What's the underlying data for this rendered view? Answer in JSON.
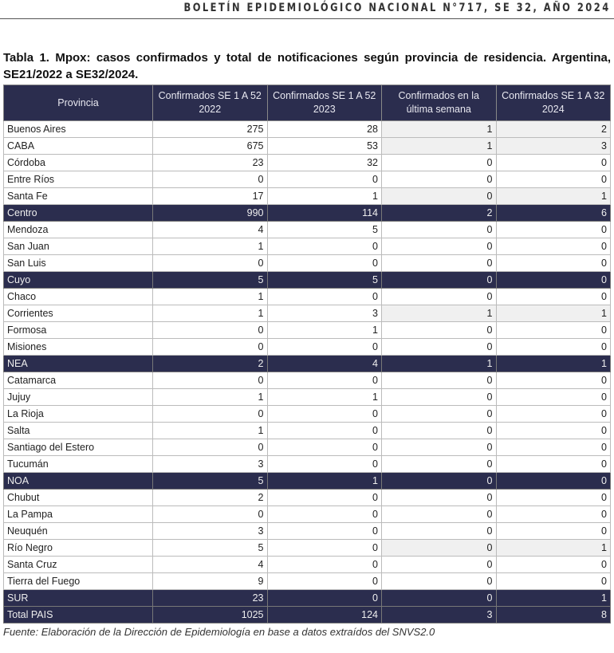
{
  "header": "BOLETÍN EPIDEMIOLÓGICO NACIONAL N°717, SE 32, AÑO 2024",
  "caption": "Tabla 1. Mpox: casos confirmados y total de notificaciones según provincia de residencia. Argentina, SE21/2022 a SE32/2024.",
  "columns": [
    "Provincia",
    "Confirmados SE 1 A 52 2022",
    "Confirmados SE 1 A 52 2023",
    "Confirmados en la última semana",
    "Confirmados SE 1 A 32 2024"
  ],
  "rows": [
    {
      "cells": [
        "Buenos Aires",
        "275",
        "28",
        "1",
        "2"
      ],
      "hl": true
    },
    {
      "cells": [
        "CABA",
        "675",
        "53",
        "1",
        "3"
      ],
      "hl": true
    },
    {
      "cells": [
        "Córdoba",
        "23",
        "32",
        "0",
        "0"
      ]
    },
    {
      "cells": [
        "Entre Ríos",
        "0",
        "0",
        "0",
        "0"
      ]
    },
    {
      "cells": [
        "Santa Fe",
        "17",
        "1",
        "0",
        "1"
      ],
      "hl": true
    },
    {
      "cells": [
        "Centro",
        "990",
        "114",
        "2",
        "6"
      ],
      "sum": true
    },
    {
      "cells": [
        "Mendoza",
        "4",
        "5",
        "0",
        "0"
      ]
    },
    {
      "cells": [
        "San Juan",
        "1",
        "0",
        "0",
        "0"
      ]
    },
    {
      "cells": [
        "San Luis",
        "0",
        "0",
        "0",
        "0"
      ]
    },
    {
      "cells": [
        "Cuyo",
        "5",
        "5",
        "0",
        "0"
      ],
      "sum": true
    },
    {
      "cells": [
        "Chaco",
        "1",
        "0",
        "0",
        "0"
      ]
    },
    {
      "cells": [
        "Corrientes",
        "1",
        "3",
        "1",
        "1"
      ],
      "hl": true
    },
    {
      "cells": [
        "Formosa",
        "0",
        "1",
        "0",
        "0"
      ]
    },
    {
      "cells": [
        "Misiones",
        "0",
        "0",
        "0",
        "0"
      ]
    },
    {
      "cells": [
        "NEA",
        "2",
        "4",
        "1",
        "1"
      ],
      "sum": true
    },
    {
      "cells": [
        "Catamarca",
        "0",
        "0",
        "0",
        "0"
      ]
    },
    {
      "cells": [
        "Jujuy",
        "1",
        "1",
        "0",
        "0"
      ]
    },
    {
      "cells": [
        "La Rioja",
        "0",
        "0",
        "0",
        "0"
      ]
    },
    {
      "cells": [
        "Salta",
        "1",
        "0",
        "0",
        "0"
      ]
    },
    {
      "cells": [
        "Santiago del Estero",
        "0",
        "0",
        "0",
        "0"
      ]
    },
    {
      "cells": [
        "Tucumán",
        "3",
        "0",
        "0",
        "0"
      ]
    },
    {
      "cells": [
        "NOA",
        "5",
        "1",
        "0",
        "0"
      ],
      "sum": true
    },
    {
      "cells": [
        "Chubut",
        "2",
        "0",
        "0",
        "0"
      ]
    },
    {
      "cells": [
        "La Pampa",
        "0",
        "0",
        "0",
        "0"
      ]
    },
    {
      "cells": [
        "Neuquén",
        "3",
        "0",
        "0",
        "0"
      ]
    },
    {
      "cells": [
        "Río Negro",
        "5",
        "0",
        "0",
        "1"
      ],
      "hl": true
    },
    {
      "cells": [
        "Santa Cruz",
        "4",
        "0",
        "0",
        "0"
      ]
    },
    {
      "cells": [
        "Tierra del Fuego",
        "9",
        "0",
        "0",
        "0"
      ]
    },
    {
      "cells": [
        "SUR",
        "23",
        "0",
        "0",
        "1"
      ],
      "sum": true
    },
    {
      "cells": [
        "Total PAIS",
        "1025",
        "124",
        "3",
        "8"
      ],
      "sum": true
    }
  ],
  "source": "Fuente: Elaboración de la Dirección de Epidemiología en base a datos extraídos del SNVS2.0",
  "colors": {
    "header_bg": "#2b2d4e",
    "highlight": "#f0f0f0"
  }
}
